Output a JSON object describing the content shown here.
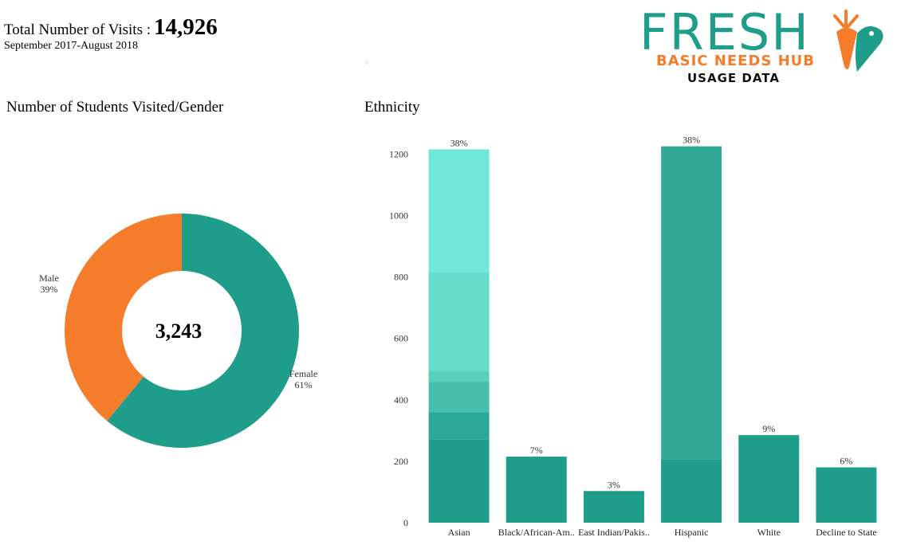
{
  "header": {
    "total_label": "Total Number of Visits :",
    "total_value": "14,926",
    "period": "September 2017-August 2018"
  },
  "logo": {
    "word": "FRESH",
    "subtitle": "BASIC NEEDS HUB",
    "tagline": "USAGE DATA",
    "colors": {
      "teal": "#1f9d8b",
      "orange": "#f47c2b"
    },
    "icon": "carrot-icon"
  },
  "gender_chart": {
    "title": "Number of Students Visited/Gender"
  },
  "ethnicity_chart": {
    "title": "Ethnicity"
  },
  "chart_data": [
    {
      "type": "pie",
      "title": "Number of Students Visited/Gender",
      "center_label": "3,243",
      "slices": [
        {
          "name": "Female",
          "percent": 61,
          "label": "61%",
          "color": "#1f9d8b"
        },
        {
          "name": "Male",
          "percent": 39,
          "label": "39%",
          "color": "#f47c2b"
        }
      ]
    },
    {
      "type": "bar",
      "title": "Ethnicity",
      "categories": [
        "Asian",
        "Black/African-Am..",
        "East Indian/Pakis..",
        "Hispanic",
        "White",
        "Decline to State"
      ],
      "values": [
        1215,
        215,
        103,
        1225,
        285,
        180
      ],
      "labels": [
        "38%",
        "7%",
        "3%",
        "38%",
        "9%",
        "6%"
      ],
      "stacks": [
        [
          {
            "value": 270,
            "color": "#1f9d8b"
          },
          {
            "value": 90,
            "color": "#2aa998"
          },
          {
            "value": 100,
            "color": "#45c0ac"
          },
          {
            "value": 35,
            "color": "#56d0bc"
          },
          {
            "value": 320,
            "color": "#64ddcb"
          },
          {
            "value": 400,
            "color": "#70e8da"
          }
        ],
        [
          {
            "value": 215,
            "color": "#1f9d8b"
          }
        ],
        [
          {
            "value": 103,
            "color": "#1f9d8b"
          }
        ],
        [
          {
            "value": 205,
            "color": "#1f9d8b"
          },
          {
            "value": 1020,
            "color": "#33aa98"
          }
        ],
        [
          {
            "value": 285,
            "color": "#1f9d8b"
          }
        ],
        [
          {
            "value": 180,
            "color": "#1f9d8b"
          }
        ]
      ],
      "ylim": [
        0,
        1250
      ],
      "yticks": [
        0,
        200,
        400,
        600,
        800,
        1000,
        1200
      ],
      "grid": false
    }
  ]
}
